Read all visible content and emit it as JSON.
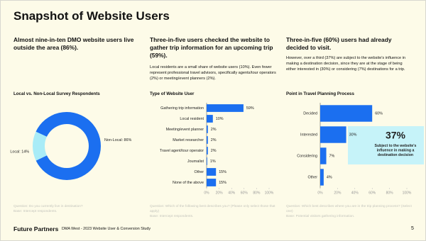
{
  "header": {
    "title": "Snapshot of Website Users"
  },
  "columns": [
    {
      "heading": "Almost nine-in-ten DMO website users live outside the area (86%).",
      "question": "Question: Do you currently live in destination?",
      "base": "Base: Intercept respondents."
    },
    {
      "heading": "Three-in-five users checked the website to gather trip information for an upcoming trip (59%).",
      "body": "Local residents are a small share of website users (10%).  Even fewer represent professional travel advisors, specifically agents/tour operators (2%) or meeting/event planners (2%).",
      "question": "Question: Which of the following best describes you? (Please only select those that apply)",
      "base": "Base: Intercept respondents."
    },
    {
      "heading": "Three-in-five (60%) users had already decided to visit.",
      "body": "However, over a third (37%) are subject to the website's influence in making a destination decision, since they are at the stage of being either interested in (30%) or considering (7%) destinations for a trip.",
      "question": "Question: Which best describes where you are in the trip planning process? (Select one)",
      "base": "Base: Potential visitors gathering information."
    }
  ],
  "chart_data": [
    {
      "type": "donut",
      "title": "Local vs. Non-Local Survey Respondents",
      "values": [
        86,
        14
      ],
      "value_labels": [
        "Non-Local: 86%",
        "Local: 14%"
      ],
      "colors": [
        "#1b6ff0",
        "#a9ecf7"
      ]
    },
    {
      "type": "hbar",
      "title": "Type of Website User",
      "categories": [
        "Gathering trip information",
        "Local resident",
        "Meeting/event planner",
        "Market researcher",
        "Travel agent/tour operator",
        "Journalist",
        "Other",
        "None of the above"
      ],
      "values": [
        59,
        10,
        2,
        2,
        2,
        1,
        15,
        15
      ],
      "value_labels": [
        "59%",
        "10%",
        "2%",
        "2%",
        "2%",
        "1%",
        "15%",
        "15%"
      ],
      "color": "#1b6ff0",
      "xlim": [
        0,
        100
      ],
      "xticks": [
        {
          "value": 0,
          "label": "0%"
        },
        {
          "value": 20,
          "label": "20%"
        },
        {
          "value": 40,
          "label": "40%"
        },
        {
          "value": 60,
          "label": "60%"
        },
        {
          "value": 80,
          "label": "80%"
        },
        {
          "value": 100,
          "label": "100%"
        }
      ]
    },
    {
      "type": "hbar",
      "title": "Point in Travel Planning Process",
      "categories": [
        "Decided",
        "Interested",
        "Considering",
        "Other"
      ],
      "values": [
        60,
        30,
        7,
        4
      ],
      "value_labels": [
        "60%",
        "30%",
        "7%",
        "4%"
      ],
      "color": "#1b6ff0",
      "xlim": [
        0,
        100
      ],
      "xticks": [
        {
          "value": 0,
          "label": "0%"
        },
        {
          "value": 20,
          "label": "20%"
        },
        {
          "value": 40,
          "label": "40%"
        },
        {
          "value": 60,
          "label": "60%"
        },
        {
          "value": 80,
          "label": "80%"
        },
        {
          "value": 100,
          "label": "100%"
        }
      ],
      "annotation": {
        "big": "37%",
        "text": "Subject to the website's influence in making a destination decision"
      }
    }
  ],
  "footer": {
    "brand": "Future Partners",
    "study": "DMA West - 2023 Website User & Conversion Study",
    "page": "5"
  }
}
